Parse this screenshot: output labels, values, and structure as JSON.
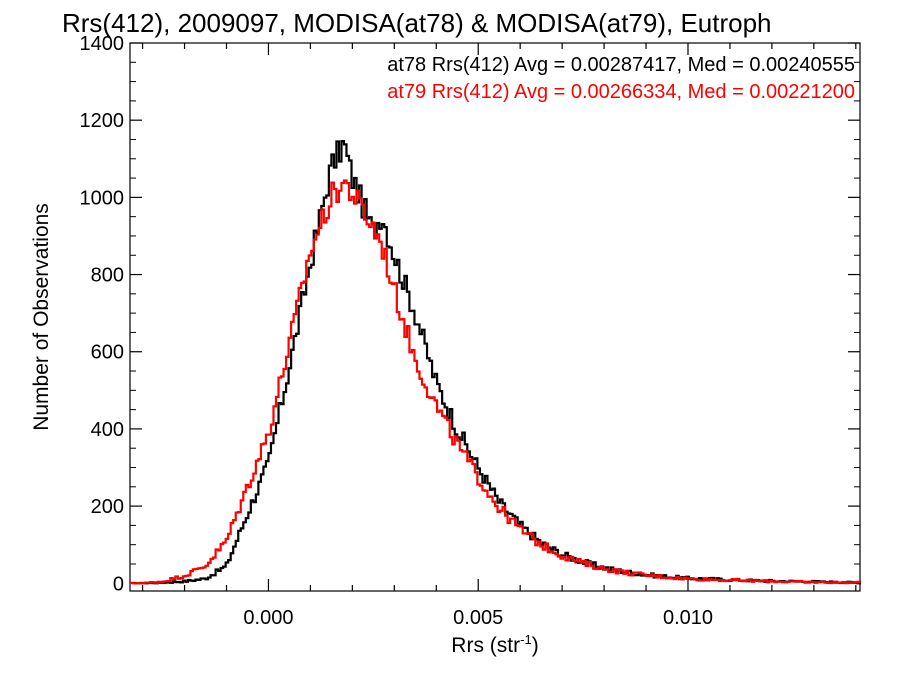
{
  "chart_data": {
    "type": "histogram-step",
    "title": "Rrs(412), 2009097, MODISA(at78) & MODISA(at79), Eutroph",
    "xlabel": {
      "base": "Rrs (str",
      "sup": "-1",
      "close": ")"
    },
    "ylabel": "Number of Observations",
    "xlim": [
      -0.0033,
      0.0141
    ],
    "ylim": [
      -20,
      1400
    ],
    "x_ticks": [
      {
        "value": 0.0,
        "label": "0.000"
      },
      {
        "value": 0.005,
        "label": "0.005"
      },
      {
        "value": 0.01,
        "label": "0.010"
      }
    ],
    "y_ticks": [
      {
        "value": 0,
        "label": "0"
      },
      {
        "value": 200,
        "label": "200"
      },
      {
        "value": 400,
        "label": "400"
      },
      {
        "value": 600,
        "label": "600"
      },
      {
        "value": 800,
        "label": "800"
      },
      {
        "value": 1000,
        "label": "1000"
      },
      {
        "value": 1200,
        "label": "1200"
      },
      {
        "value": 1400,
        "label": "1400"
      }
    ],
    "series": [
      {
        "name": "at78",
        "color": "#000000",
        "stats_label": "at78 Rrs(412) Avg = 0.00287417, Med = 0.00240555",
        "points": [
          [
            -0.003,
            0
          ],
          [
            -0.0025,
            2
          ],
          [
            -0.002,
            5
          ],
          [
            -0.0015,
            12
          ],
          [
            -0.001,
            45
          ],
          [
            -0.0005,
            180
          ],
          [
            0.0,
            310
          ],
          [
            0.0005,
            560
          ],
          [
            0.001,
            830
          ],
          [
            0.0015,
            1080
          ],
          [
            0.0018,
            1140
          ],
          [
            0.002,
            1050
          ],
          [
            0.0025,
            910
          ],
          [
            0.0027,
            960
          ],
          [
            0.003,
            850
          ],
          [
            0.0035,
            700
          ],
          [
            0.004,
            520
          ],
          [
            0.0045,
            400
          ],
          [
            0.005,
            300
          ],
          [
            0.0055,
            210
          ],
          [
            0.006,
            150
          ],
          [
            0.0065,
            105
          ],
          [
            0.007,
            75
          ],
          [
            0.0075,
            55
          ],
          [
            0.008,
            40
          ],
          [
            0.0085,
            30
          ],
          [
            0.009,
            22
          ],
          [
            0.0095,
            17
          ],
          [
            0.01,
            13
          ],
          [
            0.011,
            9
          ],
          [
            0.012,
            6
          ],
          [
            0.013,
            4
          ],
          [
            0.014,
            2
          ]
        ]
      },
      {
        "name": "at79",
        "color": "#ff0000",
        "stats_label": "at79 Rrs(412) Avg = 0.00266334, Med = 0.00221200",
        "points": [
          [
            -0.003,
            0
          ],
          [
            -0.0025,
            5
          ],
          [
            -0.002,
            20
          ],
          [
            -0.0015,
            45
          ],
          [
            -0.001,
            110
          ],
          [
            -0.0005,
            250
          ],
          [
            0.0,
            390
          ],
          [
            0.0005,
            620
          ],
          [
            0.001,
            860
          ],
          [
            0.0015,
            1000
          ],
          [
            0.0018,
            1040
          ],
          [
            0.002,
            1010
          ],
          [
            0.0025,
            920
          ],
          [
            0.0027,
            880
          ],
          [
            0.003,
            760
          ],
          [
            0.0035,
            580
          ],
          [
            0.004,
            460
          ],
          [
            0.0045,
            360
          ],
          [
            0.005,
            275
          ],
          [
            0.0055,
            195
          ],
          [
            0.006,
            140
          ],
          [
            0.0065,
            100
          ],
          [
            0.007,
            72
          ],
          [
            0.0075,
            52
          ],
          [
            0.008,
            38
          ],
          [
            0.0085,
            28
          ],
          [
            0.009,
            21
          ],
          [
            0.0095,
            16
          ],
          [
            0.01,
            12
          ],
          [
            0.011,
            8
          ],
          [
            0.012,
            5
          ],
          [
            0.013,
            3
          ],
          [
            0.014,
            2
          ]
        ]
      }
    ],
    "legend": "top-right, text only"
  }
}
